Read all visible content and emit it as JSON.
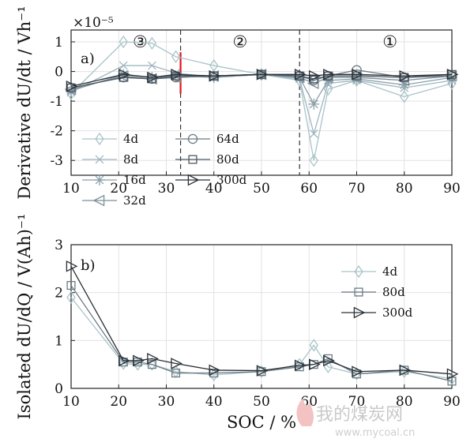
{
  "chart_data": [
    {
      "type": "line",
      "panel_label": "a)",
      "xlabel": "",
      "ylabel": "Derivative dU/dt / Vh⁻¹",
      "y_exponent_label": "×10⁻⁵",
      "xlim": [
        10,
        90
      ],
      "ylim": [
        -3.5,
        1.4
      ],
      "xticks": [
        10,
        20,
        30,
        40,
        50,
        60,
        70,
        80,
        90
      ],
      "yticks": [
        -3,
        -2,
        -1,
        0,
        1
      ],
      "grid": true,
      "legend_position": "bottom-left",
      "legend_columns": 2,
      "region_labels": [
        "③",
        "②",
        "①"
      ],
      "region_boundaries": [
        33,
        58
      ],
      "highlight_x": 33,
      "x": [
        10,
        21,
        27,
        32,
        40,
        50,
        58,
        61,
        64,
        70,
        80,
        90
      ],
      "series": [
        {
          "name": "4d",
          "marker": "diamond",
          "color": "#a9c3c8",
          "values": [
            -0.75,
            1.0,
            0.95,
            0.5,
            0.2,
            -0.1,
            -0.3,
            -3.0,
            -0.6,
            -0.3,
            -0.85,
            -0.4
          ]
        },
        {
          "name": "8d",
          "marker": "x",
          "color": "#9fb6c0",
          "values": [
            -0.7,
            0.2,
            0.2,
            -0.05,
            -0.2,
            -0.1,
            -0.25,
            -2.1,
            -0.4,
            -0.3,
            -0.55,
            -0.3
          ]
        },
        {
          "name": "16d",
          "marker": "star",
          "color": "#8aa0ab",
          "values": [
            -0.65,
            -0.1,
            -0.2,
            -0.15,
            -0.2,
            -0.1,
            -0.2,
            -1.1,
            -0.3,
            -0.25,
            -0.45,
            -0.2
          ]
        },
        {
          "name": "32d",
          "marker": "triangle-left",
          "color": "#7d8f99",
          "values": [
            -0.6,
            -0.15,
            -0.25,
            -0.2,
            -0.15,
            -0.1,
            -0.2,
            -0.4,
            -0.2,
            -0.2,
            -0.3,
            -0.15
          ]
        },
        {
          "name": "64d",
          "marker": "circle",
          "color": "#6c7b85",
          "values": [
            -0.55,
            -0.2,
            -0.25,
            -0.2,
            -0.15,
            -0.1,
            -0.15,
            -0.3,
            -0.15,
            0.05,
            -0.2,
            -0.15
          ]
        },
        {
          "name": "80d",
          "marker": "square",
          "color": "#4f5a63",
          "values": [
            -0.55,
            -0.2,
            -0.25,
            -0.15,
            -0.15,
            -0.1,
            -0.15,
            -0.25,
            -0.15,
            -0.15,
            -0.2,
            -0.1
          ]
        },
        {
          "name": "300d",
          "marker": "triangle-right",
          "color": "#2a3036",
          "values": [
            -0.5,
            -0.1,
            -0.2,
            -0.1,
            -0.15,
            -0.1,
            -0.1,
            -0.15,
            -0.1,
            -0.1,
            -0.15,
            -0.1
          ]
        }
      ]
    },
    {
      "type": "line",
      "panel_label": "b)",
      "xlabel": "SOC / %",
      "ylabel": "Isolated dU/dQ / V(Ah)⁻¹",
      "xlim": [
        10,
        90
      ],
      "ylim": [
        0,
        3
      ],
      "xticks": [
        10,
        20,
        30,
        40,
        50,
        60,
        70,
        80,
        90
      ],
      "yticks": [
        0,
        1,
        2,
        3
      ],
      "grid": true,
      "legend_position": "top-right",
      "x": [
        10,
        21,
        24,
        27,
        32,
        40,
        50,
        58,
        61,
        64,
        70,
        80,
        90
      ],
      "series": [
        {
          "name": "4d",
          "marker": "diamond",
          "color": "#a9c3c8",
          "values": [
            1.9,
            0.52,
            0.5,
            0.5,
            0.35,
            0.28,
            0.35,
            0.5,
            0.9,
            0.45,
            0.3,
            0.35,
            0.2
          ]
        },
        {
          "name": "80d",
          "marker": "square",
          "color": "#6c7b85",
          "values": [
            2.15,
            0.55,
            0.55,
            0.5,
            0.32,
            0.32,
            0.35,
            0.45,
            0.5,
            0.62,
            0.3,
            0.38,
            0.15
          ]
        },
        {
          "name": "300d",
          "marker": "triangle-right",
          "color": "#2a3036",
          "values": [
            2.55,
            0.58,
            0.58,
            0.62,
            0.52,
            0.38,
            0.37,
            0.48,
            0.5,
            0.58,
            0.35,
            0.38,
            0.3
          ]
        }
      ]
    }
  ],
  "watermark": {
    "brand": "我的煤炭网",
    "url": "www.mycoal.cn"
  }
}
